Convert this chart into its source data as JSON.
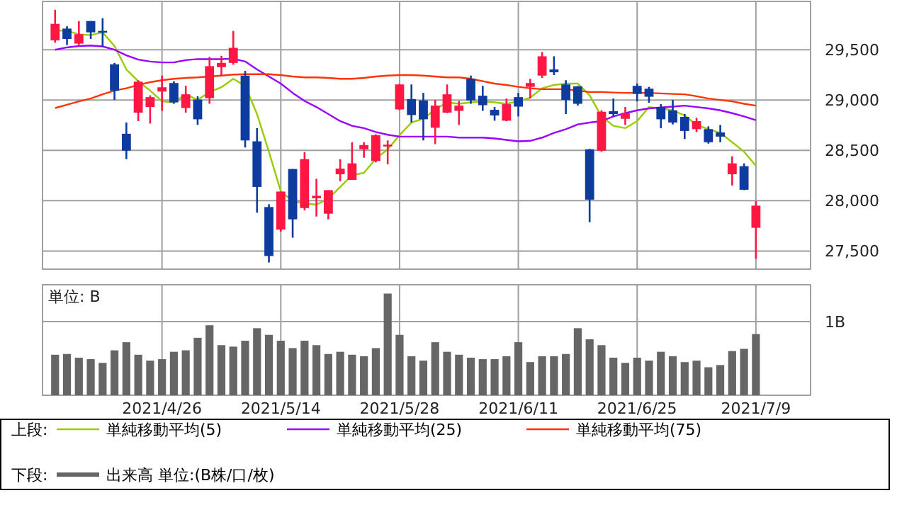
{
  "chart_data": [
    {
      "type": "candlestick",
      "legend_title": "上段:",
      "legend": "bottom",
      "grid": true,
      "tick_labels": "y",
      "categories": [
        null,
        null,
        null,
        null,
        null,
        null,
        null,
        null,
        null,
        "2021/4/26",
        null,
        null,
        null,
        null,
        null,
        null,
        null,
        null,
        null,
        "2021/5/14",
        null,
        null,
        null,
        null,
        null,
        null,
        null,
        null,
        null,
        "2021/5/28",
        null,
        null,
        null,
        null,
        null,
        null,
        null,
        null,
        null,
        "2021/6/11",
        null,
        null,
        null,
        null,
        null,
        null,
        null,
        null,
        null,
        "2021/6/25",
        null,
        null,
        null,
        null,
        null,
        null,
        null,
        null,
        null,
        "2021/7/9"
      ],
      "ylim": [
        27320,
        29980
      ],
      "yticks": [
        {
          "value": 27500,
          "label": "27,500"
        },
        {
          "value": 28000,
          "label": "28,000"
        },
        {
          "value": 28500,
          "label": "28,500"
        },
        {
          "value": 29000,
          "label": "29,000"
        },
        {
          "value": 29500,
          "label": "29,500"
        }
      ],
      "ohlc": [
        [
          29593,
          29897,
          29570,
          29757
        ],
        [
          29710,
          29733,
          29547,
          29607
        ],
        [
          29561,
          29785,
          29547,
          29654
        ],
        [
          29785,
          29785,
          29607,
          29673
        ],
        [
          29687,
          29813,
          29528,
          29673
        ],
        [
          29355,
          29369,
          29001,
          29094
        ],
        [
          28665,
          28777,
          28413,
          28497
        ],
        [
          28875,
          29197,
          28791,
          29183
        ],
        [
          28931,
          29047,
          28767,
          29029
        ],
        [
          29085,
          29243,
          28893,
          29127
        ],
        [
          29169,
          29187,
          28963,
          28977
        ],
        [
          28921,
          29141,
          28875,
          29057
        ],
        [
          29005,
          29038,
          28753,
          28809
        ],
        [
          29019,
          29430,
          28963,
          29337
        ],
        [
          29327,
          29439,
          29234,
          29369
        ],
        [
          29369,
          29687,
          29351,
          29519
        ],
        [
          29243,
          29290,
          28529,
          28599
        ],
        [
          28590,
          28721,
          27881,
          28137
        ],
        [
          27937,
          27965,
          27386,
          27451
        ],
        [
          27713,
          28091,
          27694,
          28091
        ],
        [
          28315,
          28315,
          27633,
          27815
        ],
        [
          27927,
          28483,
          27904,
          28413
        ],
        [
          28025,
          28217,
          27843,
          28049
        ],
        [
          27871,
          28105,
          27815,
          28105
        ],
        [
          28263,
          28413,
          28193,
          28319
        ],
        [
          28207,
          28581,
          28207,
          28371
        ],
        [
          28511,
          28581,
          28427,
          28553
        ],
        [
          28394,
          28660,
          28380,
          28651
        ],
        [
          28539,
          28599,
          28361,
          28557
        ],
        [
          28907,
          29160,
          28900,
          29155
        ],
        [
          29010,
          29155,
          28777,
          28851
        ],
        [
          28996,
          29071,
          28599,
          28809
        ],
        [
          28725,
          29001,
          28562,
          28945
        ],
        [
          28875,
          29155,
          28870,
          29057
        ],
        [
          28893,
          28991,
          28753,
          28945
        ],
        [
          29211,
          29243,
          28963,
          28996
        ],
        [
          29043,
          29141,
          28893,
          28949
        ],
        [
          28903,
          28931,
          28795,
          28847
        ],
        [
          28795,
          29015,
          28790,
          28959
        ],
        [
          29029,
          29071,
          28837,
          28935
        ],
        [
          29131,
          29211,
          29015,
          29169
        ],
        [
          29243,
          29477,
          29220,
          29435
        ],
        [
          29304,
          29435,
          29248,
          29276
        ],
        [
          29155,
          29197,
          28861,
          29001
        ],
        [
          29136,
          29140,
          28945,
          28963
        ],
        [
          28511,
          28515,
          27787,
          28011
        ],
        [
          28497,
          28898,
          28487,
          28884
        ],
        [
          28889,
          29015,
          28837,
          28861
        ],
        [
          28814,
          28931,
          28753,
          28870
        ],
        [
          29141,
          29164,
          28987,
          29061
        ],
        [
          29113,
          29131,
          28973,
          29033
        ],
        [
          28931,
          28959,
          28721,
          28809
        ],
        [
          28898,
          29001,
          28758,
          28777
        ],
        [
          28833,
          28861,
          28613,
          28693
        ],
        [
          28711,
          28823,
          28683,
          28791
        ],
        [
          28711,
          28739,
          28567,
          28581
        ],
        [
          28679,
          28753,
          28581,
          28637
        ],
        [
          28263,
          28441,
          28151,
          28371
        ],
        [
          28343,
          28371,
          28105,
          28109
        ],
        [
          27731,
          27997,
          27423,
          27951
        ]
      ],
      "colors": [
        "#ff1744",
        "#0d3b9e",
        "#ff1744",
        "#0d3b9e",
        "#0d3b9e",
        "#0d3b9e",
        "#0d3b9e",
        "#ff1744",
        "#ff1744",
        "#ff1744",
        "#0d3b9e",
        "#ff1744",
        "#0d3b9e",
        "#ff1744",
        "#ff1744",
        "#ff1744",
        "#0d3b9e",
        "#0d3b9e",
        "#0d3b9e",
        "#ff1744",
        "#0d3b9e",
        "#ff1744",
        "#ff1744",
        "#ff1744",
        "#ff1744",
        "#ff1744",
        "#ff1744",
        "#ff1744",
        "#ff1744",
        "#ff1744",
        "#0d3b9e",
        "#0d3b9e",
        "#ff1744",
        "#ff1744",
        "#ff1744",
        "#0d3b9e",
        "#0d3b9e",
        "#0d3b9e",
        "#ff1744",
        "#0d3b9e",
        "#ff1744",
        "#ff1744",
        "#0d3b9e",
        "#0d3b9e",
        "#0d3b9e",
        "#0d3b9e",
        "#ff1744",
        "#0d3b9e",
        "#ff1744",
        "#0d3b9e",
        "#0d3b9e",
        "#0d3b9e",
        "#0d3b9e",
        "#0d3b9e",
        "#ff1744",
        "#0d3b9e",
        "#0d3b9e",
        "#ff1744",
        "#0d3b9e",
        "#ff1744"
      ],
      "series": [
        {
          "type": "line",
          "name": "単純移動平均(5)",
          "color": "#99cc00",
          "values": [
            29691,
            29687,
            29654,
            29645,
            29673,
            29537,
            29304,
            29187,
            29094,
            28987,
            28977,
            29057,
            29001,
            29080,
            29127,
            29211,
            29141,
            28861,
            28487,
            28091,
            27997,
            27974,
            27960,
            28021,
            28137,
            28254,
            28277,
            28417,
            28511,
            28651,
            28777,
            28814,
            28907,
            28977,
            28963,
            28977,
            28987,
            28977,
            28963,
            28987,
            29024,
            29117,
            29150,
            29164,
            29164,
            29047,
            28837,
            28744,
            28721,
            28791,
            28931,
            28917,
            28898,
            28847,
            28753,
            28711,
            28674,
            28581,
            28487,
            28347
          ]
        },
        {
          "type": "line",
          "name": "単純移動平均(25)",
          "color": "#9900ff",
          "values": [
            29500,
            29523,
            29537,
            29542,
            29533,
            29500,
            29444,
            29402,
            29383,
            29374,
            29374,
            29397,
            29407,
            29407,
            29407,
            29411,
            29383,
            29304,
            29234,
            29164,
            29071,
            28991,
            28931,
            28861,
            28791,
            28744,
            28721,
            28683,
            28655,
            28637,
            28637,
            28637,
            28637,
            28637,
            28627,
            28627,
            28627,
            28618,
            28604,
            28590,
            28595,
            28627,
            28674,
            28711,
            28758,
            28777,
            28791,
            28837,
            28870,
            28898,
            28917,
            28926,
            28935,
            28945,
            28931,
            28917,
            28898,
            28870,
            28837,
            28800
          ]
        },
        {
          "type": "line",
          "name": "単純移動平均(75)",
          "color": "#ff3300",
          "values": [
            28921,
            28954,
            28987,
            29015,
            29057,
            29094,
            29117,
            29150,
            29178,
            29197,
            29211,
            29220,
            29225,
            29234,
            29243,
            29253,
            29257,
            29257,
            29257,
            29248,
            29234,
            29225,
            29225,
            29220,
            29211,
            29211,
            29220,
            29234,
            29243,
            29248,
            29248,
            29243,
            29234,
            29225,
            29225,
            29211,
            29187,
            29164,
            29150,
            29131,
            29117,
            29108,
            29108,
            29108,
            29094,
            29080,
            29080,
            29075,
            29071,
            29071,
            29071,
            29066,
            29061,
            29057,
            29038,
            29015,
            29001,
            28987,
            28963,
            28945
          ]
        }
      ]
    },
    {
      "type": "bar",
      "ylabel": "単位: B",
      "legend_title": "下段:",
      "legend": "bottom",
      "grid": true,
      "categories": [
        null,
        null,
        null,
        null,
        null,
        null,
        null,
        null,
        null,
        "2021/4/26",
        null,
        null,
        null,
        null,
        null,
        null,
        null,
        null,
        null,
        "2021/5/14",
        null,
        null,
        null,
        null,
        null,
        null,
        null,
        null,
        null,
        "2021/5/28",
        null,
        null,
        null,
        null,
        null,
        null,
        null,
        null,
        null,
        "2021/6/11",
        null,
        null,
        null,
        null,
        null,
        null,
        null,
        null,
        null,
        "2021/6/25",
        null,
        null,
        null,
        null,
        null,
        null,
        null,
        null,
        null,
        "2021/7/9"
      ],
      "ylim": [
        0,
        1.5
      ],
      "yticks": [
        {
          "value": 0,
          "label": null
        },
        {
          "value": 1,
          "label": "1B"
        }
      ],
      "series": [
        {
          "name": "出来高 単位:(B株/口/枚)",
          "color": "#666666",
          "values": [
            0.55,
            0.56,
            0.51,
            0.49,
            0.44,
            0.61,
            0.72,
            0.55,
            0.47,
            0.49,
            0.59,
            0.61,
            0.78,
            0.95,
            0.68,
            0.66,
            0.74,
            0.91,
            0.82,
            0.74,
            0.64,
            0.74,
            0.68,
            0.56,
            0.59,
            0.55,
            0.53,
            0.64,
            1.38,
            0.82,
            0.53,
            0.47,
            0.72,
            0.59,
            0.55,
            0.51,
            0.49,
            0.49,
            0.53,
            0.72,
            0.45,
            0.53,
            0.53,
            0.56,
            0.91,
            0.76,
            0.68,
            0.51,
            0.44,
            0.51,
            0.47,
            0.59,
            0.53,
            0.45,
            0.47,
            0.38,
            0.41,
            0.6,
            0.63,
            0.83
          ]
        }
      ]
    }
  ]
}
